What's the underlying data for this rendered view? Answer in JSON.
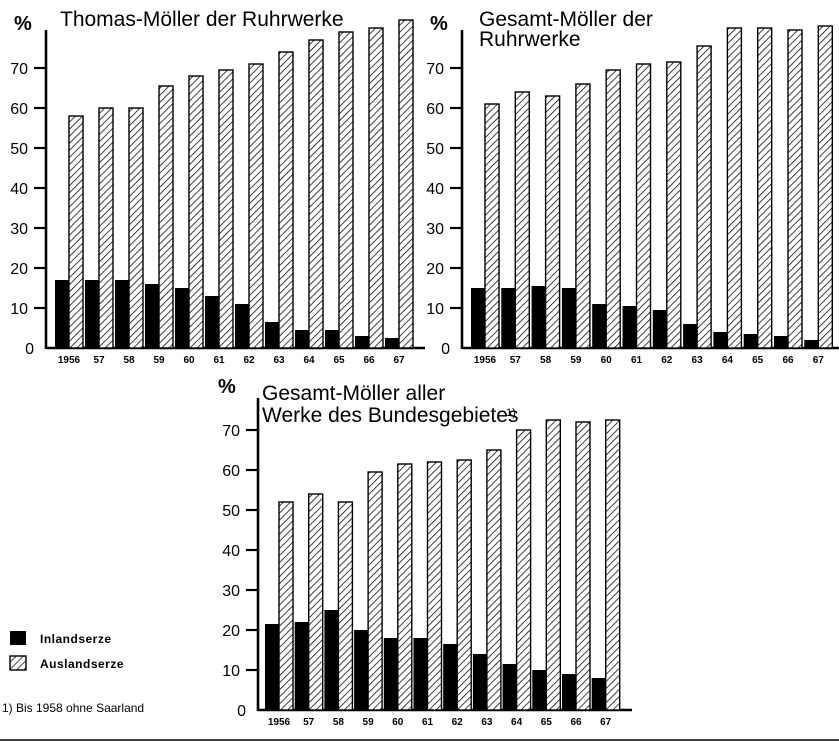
{
  "chart_data": [
    {
      "type": "bar",
      "title": "Thomas-Möller der Ruhrwerke",
      "y_unit": "%",
      "ylim": [
        0,
        80
      ],
      "y_ticks": [
        "0",
        "10",
        "20",
        "30",
        "40",
        "50",
        "60",
        "70"
      ],
      "categories": [
        "1956",
        "57",
        "58",
        "59",
        "60",
        "61",
        "62",
        "63",
        "64",
        "65",
        "66",
        "67"
      ],
      "series": [
        {
          "name": "Inlandserze",
          "values": [
            17,
            17,
            17,
            16,
            15,
            13,
            11,
            6.5,
            4.5,
            4.5,
            3,
            2.5
          ]
        },
        {
          "name": "Auslandserze",
          "values": [
            58,
            60,
            60,
            65.5,
            68,
            69.5,
            71,
            74,
            77,
            79,
            80,
            82
          ]
        }
      ]
    },
    {
      "type": "bar",
      "title": "Gesamt-Möller der Ruhrwerke",
      "y_unit": "%",
      "ylim": [
        0,
        80
      ],
      "y_ticks": [
        "0",
        "10",
        "20",
        "30",
        "40",
        "50",
        "60",
        "70"
      ],
      "categories": [
        "1956",
        "57",
        "58",
        "59",
        "60",
        "61",
        "62",
        "63",
        "64",
        "65",
        "66",
        "67"
      ],
      "series": [
        {
          "name": "Inlandserze",
          "values": [
            15,
            15,
            15.5,
            15,
            11,
            10.5,
            9.5,
            6,
            4,
            3.5,
            3,
            2
          ]
        },
        {
          "name": "Auslandserze",
          "values": [
            61,
            64,
            63,
            66,
            69.5,
            71,
            71.5,
            75.5,
            80,
            80,
            79.5,
            80.5
          ]
        }
      ]
    },
    {
      "type": "bar",
      "title": "Gesamt-Möller aller Werke des Bundesgebietes",
      "title_note": "1)",
      "y_unit": "%",
      "ylim": [
        0,
        75
      ],
      "y_ticks": [
        "0",
        "10",
        "20",
        "30",
        "40",
        "50",
        "60",
        "70"
      ],
      "categories": [
        "1956",
        "57",
        "58",
        "59",
        "60",
        "61",
        "62",
        "63",
        "64",
        "65",
        "66",
        "67"
      ],
      "series": [
        {
          "name": "Inlandserze",
          "values": [
            21.5,
            22,
            25,
            20,
            18,
            18,
            16.5,
            14,
            11.5,
            10,
            9,
            8
          ]
        },
        {
          "name": "Auslandserze",
          "values": [
            52,
            54,
            52,
            59.5,
            61.5,
            62,
            62.5,
            65,
            70,
            72.5,
            72,
            72.5
          ]
        }
      ]
    }
  ],
  "legend": {
    "inland_label": "Inlandserze",
    "ausland_label": "Auslandserze"
  },
  "footnote": "1) Bis 1958 ohne Saarland"
}
